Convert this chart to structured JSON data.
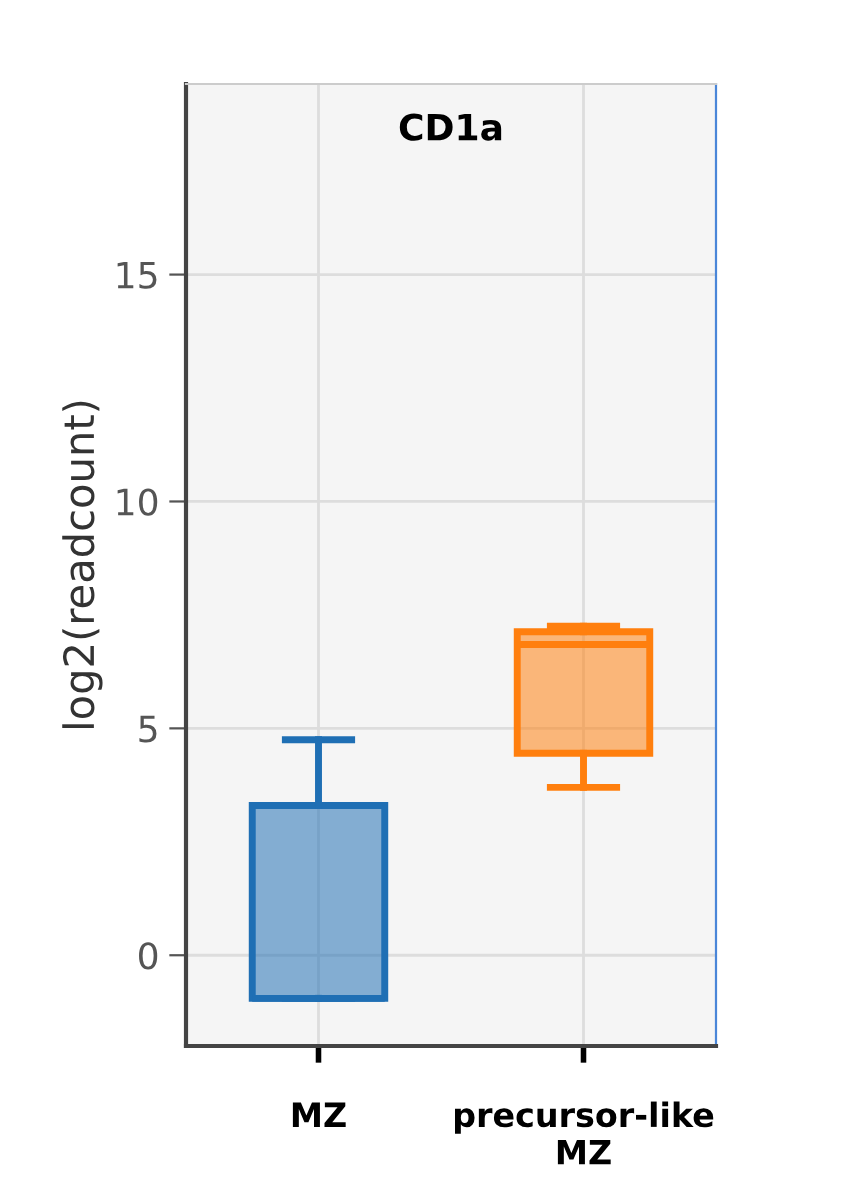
{
  "chart_data": {
    "type": "box",
    "title": "CD1a",
    "ylabel": "log2(readcount)",
    "categories": [
      "MZ",
      "precursor-like\nMZ"
    ],
    "boxes": [
      {
        "low": -0.95,
        "q1": -0.95,
        "median": -0.95,
        "q3": 3.3,
        "high": 4.75
      },
      {
        "low": 3.7,
        "q1": 4.45,
        "median": 6.85,
        "q3": 7.13,
        "high": 7.25
      }
    ],
    "colors": [
      "#1f6fb4",
      "#ff7f0e"
    ],
    "ylim": [
      -2,
      19.2
    ],
    "yticks": [
      0,
      5,
      10,
      15
    ],
    "grid": true
  }
}
